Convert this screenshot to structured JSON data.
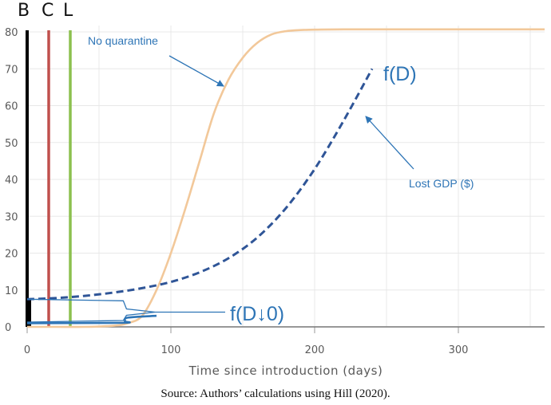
{
  "chart_data": {
    "type": "line",
    "xlabel": "Time since introduction (days)",
    "ylabel": "",
    "xlim": [
      0,
      360
    ],
    "ylim": [
      0,
      80
    ],
    "x_ticks": [
      0,
      100,
      200,
      300
    ],
    "y_ticks": [
      0,
      10,
      20,
      30,
      40,
      50,
      60,
      70,
      80
    ],
    "grid": true,
    "series": [
      {
        "name": "No quarantine",
        "color": "#f2c89a",
        "style": "solid",
        "x": [
          0,
          20,
          40,
          60,
          70,
          80,
          90,
          100,
          110,
          120,
          130,
          140,
          150,
          160,
          170,
          180,
          190,
          200,
          220,
          250,
          300,
          360
        ],
        "y": [
          0,
          0,
          0,
          0.3,
          1,
          3,
          10,
          20,
          32,
          45,
          58,
          67,
          73,
          77,
          79.3,
          80.2,
          80.5,
          80.6,
          80.7,
          80.7,
          80.7,
          80.7
        ]
      },
      {
        "name": "f(D)",
        "color": "#2f5597",
        "style": "dashed",
        "x": [
          0,
          20,
          40,
          60,
          80,
          100,
          120,
          140,
          160,
          180,
          200,
          220,
          240
        ],
        "y": [
          7.5,
          7.8,
          8.4,
          9.3,
          10.5,
          12.2,
          14.8,
          18.6,
          24.2,
          32.2,
          42.8,
          55.8,
          70
        ]
      },
      {
        "name": "f(D↓0)",
        "color": "#2e75b6",
        "style": "solid",
        "x": [
          0,
          66,
          68,
          70,
          90
        ],
        "y": [
          1,
          1.1,
          1.5,
          2.5,
          3
        ]
      }
    ],
    "vlines": [
      {
        "label": "B",
        "x": 0,
        "color": "#000000"
      },
      {
        "label": "C",
        "x": 15,
        "color": "#c0504d"
      },
      {
        "label": "L",
        "x": 30,
        "color": "#8cc04f"
      }
    ],
    "annotations": [
      {
        "text": "No quarantine"
      },
      {
        "text": "Lost GDP ($)"
      },
      {
        "text": "f(D)"
      },
      {
        "text": "f(D↓0)"
      }
    ]
  },
  "caption": "Source: Authors’ calculations using Hill (2020)."
}
